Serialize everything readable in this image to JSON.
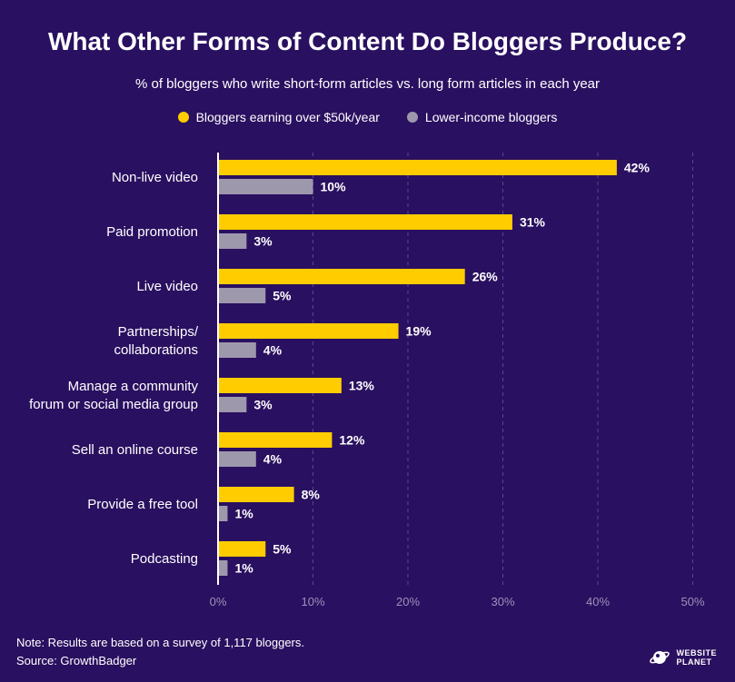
{
  "chart_data": {
    "type": "bar",
    "orientation": "horizontal",
    "title": "What Other Forms of Content Do Bloggers Produce?",
    "subtitle": "% of bloggers who write short-form articles vs. long form articles in each year",
    "categories": [
      [
        "Non-live video"
      ],
      [
        "Paid promotion"
      ],
      [
        "Live video"
      ],
      [
        "Partnerships/",
        "collaborations"
      ],
      [
        "Manage a community",
        "forum or social media group"
      ],
      [
        "Sell an online course"
      ],
      [
        "Provide a free tool"
      ],
      [
        "Podcasting"
      ]
    ],
    "series": [
      {
        "name": "Bloggers earning over $50k/year",
        "color": "#ffcc00",
        "values": [
          42,
          31,
          26,
          19,
          13,
          12,
          8,
          5
        ]
      },
      {
        "name": "Lower-income bloggers",
        "color": "#9e98ad",
        "values": [
          10,
          3,
          5,
          4,
          3,
          4,
          1,
          1
        ]
      }
    ],
    "xlim": [
      0,
      50
    ],
    "xticks": [
      0,
      10,
      20,
      30,
      40,
      50
    ],
    "tick_suffix": "%",
    "value_suffix": "%",
    "grid": true,
    "legend_position": "top-center"
  },
  "footer": {
    "note": "Note: Results are based on a survey of 1,117 bloggers.",
    "source": "Source: GrowthBadger"
  },
  "brand": {
    "line1": "WEBSITE",
    "line2": "PLANET"
  }
}
